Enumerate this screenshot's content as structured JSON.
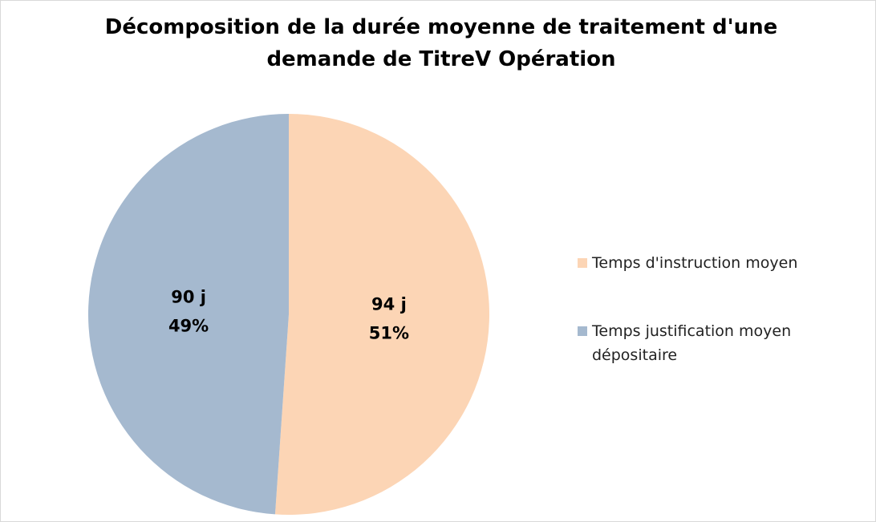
{
  "chart_data": {
    "type": "pie",
    "title": "Décomposition de la durée moyenne de traitement d'une demande de TitreV Opération",
    "categories": [
      "Temps d'instruction moyen",
      "Temps justification moyen dépositaire"
    ],
    "values": [
      94,
      90
    ],
    "value_labels": [
      "94 j",
      "90 j"
    ],
    "percentages": [
      51,
      49
    ],
    "percentage_labels": [
      "51%",
      "49%"
    ],
    "colors": [
      "#fcd5b5",
      "#a5b9cf"
    ],
    "legend": "right"
  }
}
